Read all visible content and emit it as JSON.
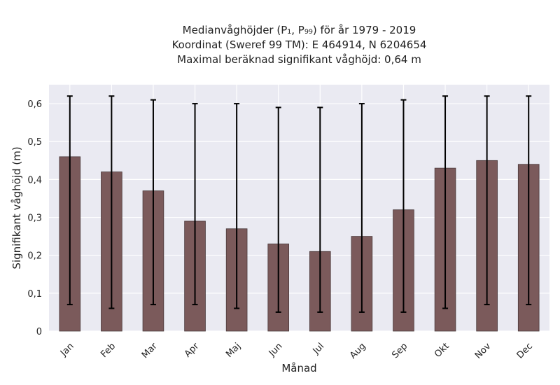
{
  "chart_data": {
    "type": "bar",
    "title_lines": [
      "Medianvåghöjder (P₁, P₉₉) för år 1979 - 2019",
      "Koordinat (Sweref 99 TM): E 464914, N 6204654",
      "Maximal beräknad signifikant våghöjd: 0,64 m"
    ],
    "xlabel": "Månad",
    "ylabel": "Signifikant våghöjd (m)",
    "categories": [
      "Jan",
      "Feb",
      "Mar",
      "Apr",
      "Maj",
      "Jun",
      "Jul",
      "Aug",
      "Sep",
      "Okt",
      "Nov",
      "Dec"
    ],
    "series": [
      {
        "values": [
          0.46,
          0.42,
          0.37,
          0.29,
          0.27,
          0.23,
          0.21,
          0.25,
          0.32,
          0.43,
          0.45,
          0.44
        ],
        "error_low": [
          0.07,
          0.06,
          0.07,
          0.07,
          0.06,
          0.05,
          0.05,
          0.05,
          0.05,
          0.06,
          0.07,
          0.07
        ],
        "error_high": [
          0.62,
          0.62,
          0.61,
          0.6,
          0.6,
          0.59,
          0.59,
          0.6,
          0.61,
          0.62,
          0.62,
          0.62
        ]
      }
    ],
    "ylim": [
      0,
      0.65
    ],
    "yticks": [
      0,
      0.1,
      0.2,
      0.3,
      0.4,
      0.5,
      0.6
    ],
    "ytick_labels": [
      "0",
      "0,1",
      "0,2",
      "0,3",
      "0,4",
      "0,5",
      "0,6"
    ],
    "grid": true,
    "bar_color": "#7b5a5b",
    "background_color": "#eaeaf2",
    "error_color": "#000000"
  }
}
